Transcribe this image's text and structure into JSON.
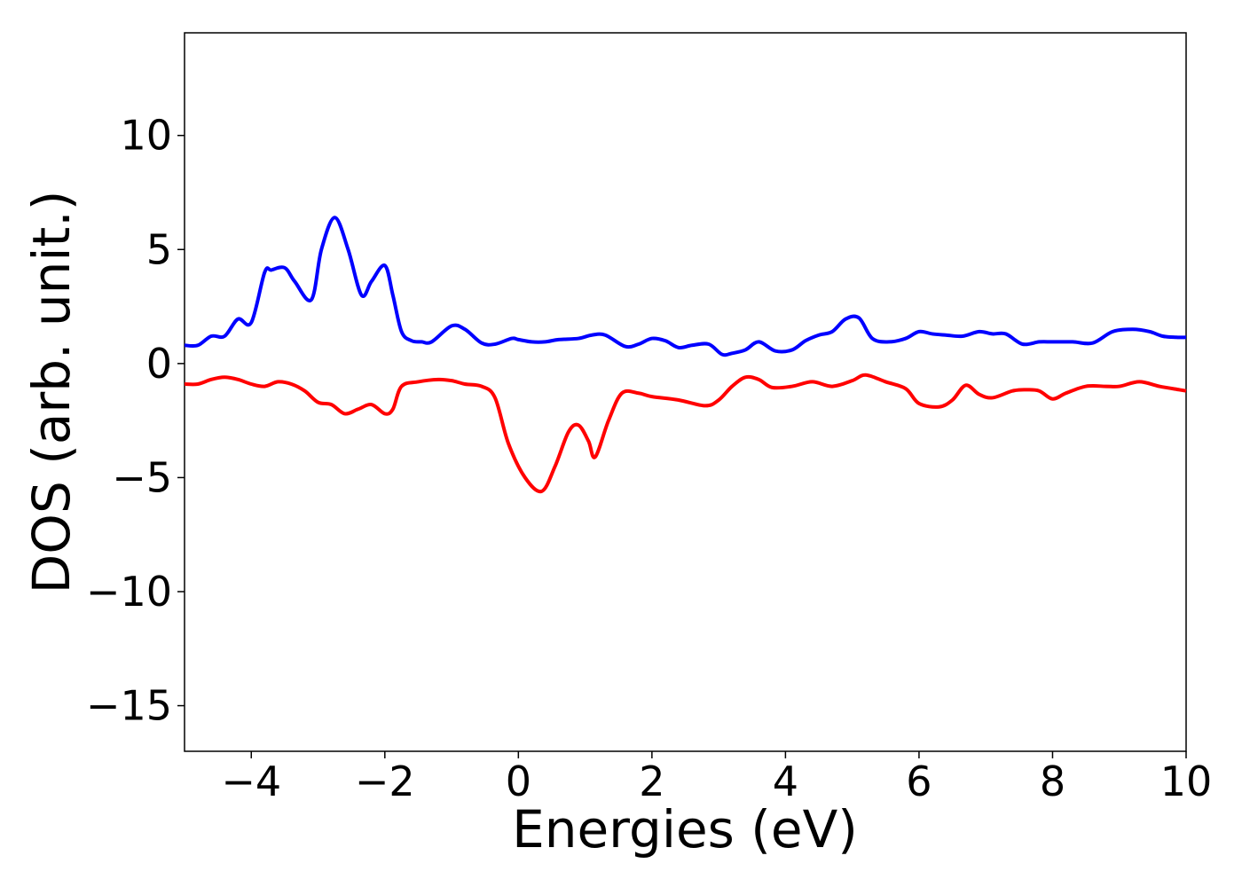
{
  "chart_data": {
    "type": "line",
    "title": "",
    "xlabel": "Energies (eV)",
    "ylabel": "DOS (arb. unit.)",
    "xlim": [
      -5,
      10
    ],
    "ylim": [
      -17,
      14.5
    ],
    "xticks": [
      -4,
      -2,
      0,
      2,
      4,
      6,
      8,
      10
    ],
    "yticks": [
      -15,
      -10,
      -5,
      0,
      5,
      10
    ],
    "xtick_labels": [
      "−4",
      "−2",
      "0",
      "2",
      "4",
      "6",
      "8",
      "10"
    ],
    "ytick_labels": [
      "−15",
      "−10",
      "−5",
      "0",
      "5",
      "10"
    ],
    "grid": false,
    "legend": "none",
    "series": [
      {
        "color": "#0000ff",
        "x": [
          -5.0,
          -4.8,
          -4.6,
          -4.4,
          -4.2,
          -4.0,
          -3.8,
          -3.7,
          -3.5,
          -3.35,
          -3.1,
          -2.95,
          -2.75,
          -2.55,
          -2.35,
          -2.2,
          -2.0,
          -1.88,
          -1.75,
          -1.6,
          -1.45,
          -1.3,
          -1.0,
          -0.8,
          -0.55,
          -0.35,
          -0.1,
          0.0,
          0.2,
          0.4,
          0.6,
          0.9,
          1.1,
          1.3,
          1.6,
          1.8,
          2.0,
          2.2,
          2.4,
          2.6,
          2.85,
          3.05,
          3.2,
          3.4,
          3.6,
          3.85,
          4.1,
          4.3,
          4.5,
          4.7,
          4.9,
          5.1,
          5.3,
          5.55,
          5.8,
          6.0,
          6.2,
          6.4,
          6.65,
          6.9,
          7.1,
          7.3,
          7.55,
          7.8,
          8.0,
          8.3,
          8.6,
          8.9,
          9.2,
          9.45,
          9.65,
          9.85,
          10.0
        ],
        "y": [
          0.8,
          0.8,
          1.2,
          1.2,
          1.95,
          1.8,
          4.0,
          4.1,
          4.2,
          3.6,
          2.8,
          5.0,
          6.4,
          5.0,
          3.0,
          3.6,
          4.3,
          3.0,
          1.4,
          1.0,
          0.95,
          0.95,
          1.65,
          1.5,
          0.9,
          0.85,
          1.1,
          1.05,
          0.95,
          0.95,
          1.05,
          1.1,
          1.25,
          1.25,
          0.75,
          0.85,
          1.1,
          1.0,
          0.7,
          0.8,
          0.85,
          0.4,
          0.45,
          0.6,
          0.95,
          0.55,
          0.6,
          1.0,
          1.25,
          1.4,
          1.95,
          2.0,
          1.1,
          0.95,
          1.1,
          1.4,
          1.3,
          1.25,
          1.2,
          1.4,
          1.3,
          1.3,
          0.85,
          0.95,
          0.95,
          0.95,
          0.9,
          1.4,
          1.5,
          1.4,
          1.2,
          1.15,
          1.15
        ],
        "name": ""
      },
      {
        "color": "#ff0000",
        "x": [
          -5.0,
          -4.8,
          -4.6,
          -4.4,
          -4.2,
          -4.0,
          -3.8,
          -3.6,
          -3.4,
          -3.2,
          -3.0,
          -2.8,
          -2.6,
          -2.4,
          -2.2,
          -2.0,
          -1.88,
          -1.75,
          -1.5,
          -1.2,
          -1.0,
          -0.8,
          -0.55,
          -0.35,
          -0.15,
          0.1,
          0.35,
          0.55,
          0.75,
          0.9,
          1.05,
          1.15,
          1.35,
          1.55,
          1.8,
          2.0,
          2.4,
          2.8,
          3.0,
          3.2,
          3.4,
          3.6,
          3.8,
          4.1,
          4.4,
          4.7,
          5.0,
          5.2,
          5.5,
          5.8,
          6.0,
          6.3,
          6.5,
          6.7,
          6.9,
          7.1,
          7.4,
          7.6,
          7.8,
          8.0,
          8.2,
          8.5,
          8.8,
          9.0,
          9.3,
          9.6,
          9.9,
          10.0
        ],
        "y": [
          -0.9,
          -0.9,
          -0.7,
          -0.6,
          -0.7,
          -0.9,
          -1.0,
          -0.8,
          -0.9,
          -1.2,
          -1.7,
          -1.8,
          -2.2,
          -2.0,
          -1.8,
          -2.2,
          -2.0,
          -1.0,
          -0.8,
          -0.7,
          -0.75,
          -0.9,
          -1.0,
          -1.5,
          -3.5,
          -5.0,
          -5.6,
          -4.5,
          -3.0,
          -2.7,
          -3.4,
          -4.1,
          -2.5,
          -1.3,
          -1.3,
          -1.45,
          -1.6,
          -1.85,
          -1.6,
          -1.0,
          -0.6,
          -0.7,
          -1.05,
          -1.0,
          -0.8,
          -1.0,
          -0.75,
          -0.5,
          -0.8,
          -1.1,
          -1.75,
          -1.9,
          -1.6,
          -0.95,
          -1.35,
          -1.5,
          -1.2,
          -1.15,
          -1.2,
          -1.55,
          -1.3,
          -1.0,
          -1.0,
          -1.0,
          -0.8,
          -1.0,
          -1.15,
          -1.2
        ],
        "name": ""
      }
    ]
  }
}
